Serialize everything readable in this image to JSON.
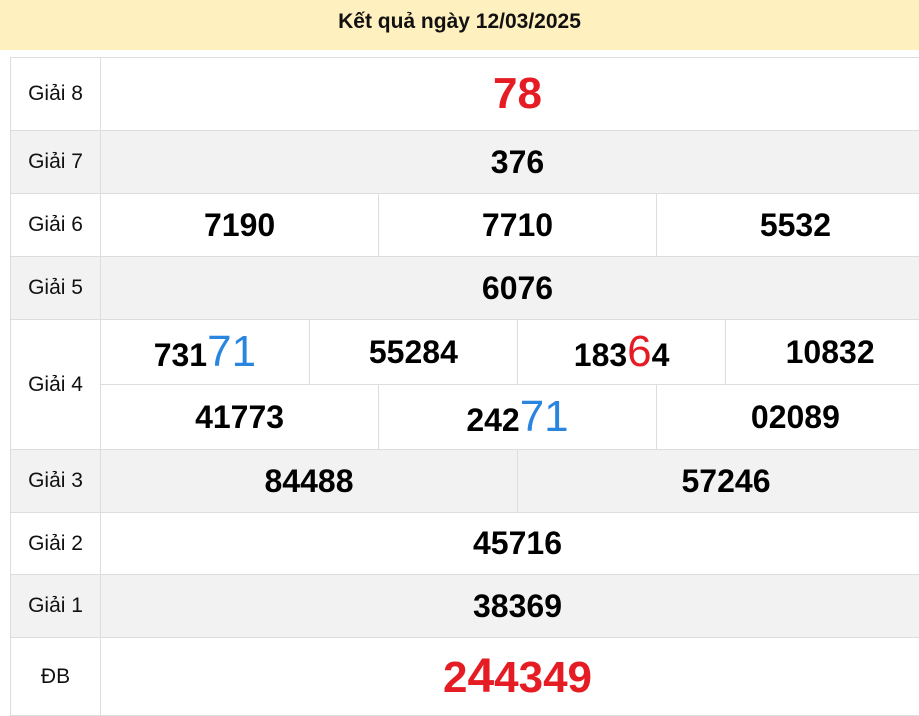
{
  "header": {
    "title": "Kết quả ngày 12/03/2025"
  },
  "colors": {
    "header_bg": "#fff0bf",
    "red": "#e51c23",
    "blue": "#2a85de",
    "row_grey": "#f2f2f2"
  },
  "prizes": {
    "g8": {
      "label": "Giải 8",
      "value": "78"
    },
    "g7": {
      "label": "Giải 7",
      "value": "376"
    },
    "g6": {
      "label": "Giải 6",
      "values": [
        "7190",
        "7710",
        "5532"
      ]
    },
    "g5": {
      "label": "Giải 5",
      "value": "6076"
    },
    "g4": {
      "label": "Giải 4",
      "values": [
        {
          "prefix": "731",
          "highlight": "71",
          "suffix": ""
        },
        {
          "prefix": "55284",
          "highlight": "",
          "suffix": ""
        },
        {
          "prefix": "183",
          "highlight": "6",
          "suffix": "4"
        },
        {
          "prefix": "10832",
          "highlight": "",
          "suffix": ""
        },
        {
          "prefix": "41773",
          "highlight": "",
          "suffix": ""
        },
        {
          "prefix": "242",
          "highlight": "71",
          "suffix": ""
        },
        {
          "prefix": "02089",
          "highlight": "",
          "suffix": ""
        }
      ]
    },
    "g3": {
      "label": "Giải 3",
      "values": [
        "84488",
        "57246"
      ]
    },
    "g2": {
      "label": "Giải 2",
      "value": "45716"
    },
    "g1": {
      "label": "Giải 1",
      "value": "38369"
    },
    "db": {
      "label": "ĐB",
      "prefix": "2",
      "highlight": "4",
      "suffix": "4349"
    }
  }
}
